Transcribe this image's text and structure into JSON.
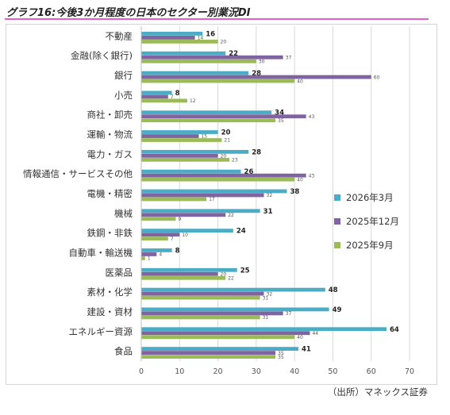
{
  "title": "グラフ16:今後3か月程度の日本のセクター別業況DI",
  "source": "（出所）マネックス証券",
  "colors": {
    "series1": "#4bacc6",
    "series2": "#8064a2",
    "series3": "#9bbb59",
    "title_rule": "#e05fd3"
  },
  "chart_data": {
    "type": "bar",
    "orientation": "horizontal",
    "categories": [
      "不動産",
      "金融(除く銀行)",
      "銀行",
      "小売",
      "商社・卸売",
      "運輸・物流",
      "電力・ガス",
      "情報通信・サービスその他",
      "電機・精密",
      "機械",
      "鉄鋼・非鉄",
      "自動車・輸送機",
      "医薬品",
      "素材・化学",
      "建設・資材",
      "エネルギー資源",
      "食品"
    ],
    "series": [
      {
        "name": "2026年3月",
        "values": [
          16,
          22,
          28,
          8,
          34,
          20,
          28,
          26,
          38,
          31,
          24,
          8,
          25,
          48,
          49,
          64,
          41
        ]
      },
      {
        "name": "2025年12月",
        "values": [
          14,
          37,
          60,
          7,
          43,
          15,
          20,
          43,
          32,
          22,
          10,
          4,
          20,
          32,
          37,
          44,
          35
        ]
      },
      {
        "name": "2025年9月",
        "values": [
          20,
          30,
          40,
          12,
          35,
          21,
          23,
          40,
          17,
          9,
          7,
          1,
          22,
          31,
          31,
          40,
          35
        ]
      }
    ],
    "xlim": [
      0,
      70
    ],
    "xticks": [
      0,
      10,
      20,
      30,
      40,
      50,
      60,
      70
    ],
    "grid": true,
    "legend": "right"
  }
}
